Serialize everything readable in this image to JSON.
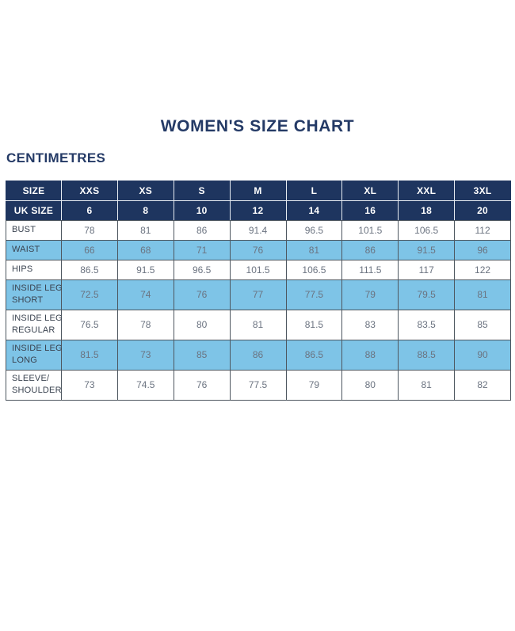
{
  "page": {
    "title": "WOMEN'S SIZE CHART",
    "subtitle": "CENTIMETRES"
  },
  "colors": {
    "header_navy": "#1E355F",
    "row_blue": "#7EC4E7",
    "title_navy": "#243A66",
    "label_text": "#3A4350",
    "value_text": "#6B7380",
    "grid_border": "#4D565F",
    "background": "#FFFFFF"
  },
  "chart_data": {
    "type": "table",
    "title": "WOMEN'S SIZE CHART",
    "unit": "CENTIMETRES",
    "header_rows": [
      {
        "label": "SIZE",
        "values": [
          "XXS",
          "XS",
          "S",
          "M",
          "L",
          "XL",
          "XXL",
          "3XL"
        ]
      },
      {
        "label": "UK SIZE",
        "values": [
          "6",
          "8",
          "10",
          "12",
          "14",
          "16",
          "18",
          "20"
        ]
      }
    ],
    "rows": [
      {
        "label": "BUST",
        "label_lines": [
          "BUST"
        ],
        "shaded": false,
        "values": [
          "78",
          "81",
          "86",
          "91.4",
          "96.5",
          "101.5",
          "106.5",
          "112"
        ]
      },
      {
        "label": "WAIST",
        "label_lines": [
          "WAIST"
        ],
        "shaded": true,
        "values": [
          "66",
          "68",
          "71",
          "76",
          "81",
          "86",
          "91.5",
          "96"
        ]
      },
      {
        "label": "HIPS",
        "label_lines": [
          "HIPS"
        ],
        "shaded": false,
        "values": [
          "86.5",
          "91.5",
          "96.5",
          "101.5",
          "106.5",
          "111.5",
          "117",
          "122"
        ]
      },
      {
        "label": "INSIDE LEG SHORT",
        "label_lines": [
          "INSIDE LEG",
          "SHORT"
        ],
        "shaded": true,
        "values": [
          "72.5",
          "74",
          "76",
          "77",
          "77.5",
          "79",
          "79.5",
          "81"
        ]
      },
      {
        "label": "INSIDE LEG REGULAR",
        "label_lines": [
          "INSIDE LEG",
          "REGULAR"
        ],
        "shaded": false,
        "values": [
          "76.5",
          "78",
          "80",
          "81",
          "81.5",
          "83",
          "83.5",
          "85"
        ]
      },
      {
        "label": "INSIDE LEG LONG",
        "label_lines": [
          "INSIDE LEG",
          "LONG"
        ],
        "shaded": true,
        "values": [
          "81.5",
          "73",
          "85",
          "86",
          "86.5",
          "88",
          "88.5",
          "90"
        ]
      },
      {
        "label": "SLEEVE/SHOULDER",
        "label_lines": [
          "SLEEVE/",
          "SHOULDER"
        ],
        "shaded": false,
        "values": [
          "73",
          "74.5",
          "76",
          "77.5",
          "79",
          "80",
          "81",
          "82"
        ]
      }
    ]
  }
}
